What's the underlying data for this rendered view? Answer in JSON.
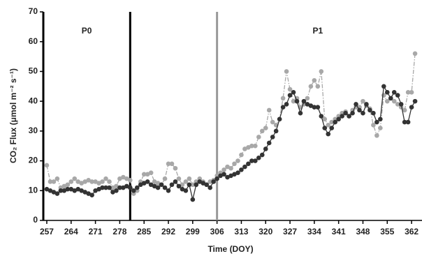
{
  "chart_data": {
    "type": "line",
    "xlabel": "Time (DOY)",
    "ylabel": "CO₂ Flux (μmol m⁻² s⁻¹)",
    "x": [
      257,
      258,
      259,
      260,
      261,
      262,
      263,
      264,
      265,
      266,
      267,
      268,
      269,
      270,
      271,
      272,
      273,
      274,
      275,
      276,
      277,
      278,
      279,
      280,
      281,
      282,
      283,
      284,
      285,
      286,
      287,
      288,
      289,
      290,
      291,
      292,
      293,
      294,
      295,
      296,
      297,
      298,
      299,
      300,
      301,
      302,
      303,
      304,
      305,
      306,
      307,
      308,
      309,
      310,
      311,
      312,
      313,
      314,
      315,
      316,
      317,
      318,
      319,
      320,
      321,
      322,
      323,
      324,
      325,
      326,
      327,
      328,
      329,
      330,
      331,
      332,
      333,
      334,
      335,
      336,
      337,
      338,
      339,
      340,
      341,
      342,
      343,
      344,
      345,
      346,
      347,
      348,
      349,
      350,
      351,
      352,
      353,
      354,
      355,
      356,
      357,
      358,
      359,
      360,
      361,
      362,
      363
    ],
    "series": [
      {
        "color": "#a8a8a8",
        "dash": true,
        "values": [
          18.5,
          13,
          13,
          14,
          11,
          11.5,
          12,
          13,
          14,
          13,
          12.5,
          13,
          13.5,
          13,
          13,
          12.5,
          13,
          14,
          13,
          11,
          11.5,
          14,
          14.5,
          14,
          13.5,
          9,
          10,
          13,
          15.5,
          15.5,
          16,
          13,
          12.5,
          12,
          14,
          19,
          19,
          17.5,
          14,
          12,
          13,
          14,
          12,
          13,
          14,
          13,
          12,
          13,
          13.5,
          15,
          16,
          17,
          18,
          17.5,
          19,
          20,
          22,
          24,
          24.5,
          25,
          25,
          28,
          30,
          31,
          37,
          33,
          32,
          34,
          41,
          50,
          44,
          40,
          41,
          38,
          39,
          41,
          45,
          47,
          45,
          50,
          34,
          32,
          33,
          34,
          35,
          36,
          36.5,
          35,
          37,
          38,
          38,
          40,
          38.5,
          37.5,
          32,
          28.5,
          31,
          42,
          40,
          41,
          40,
          39,
          38,
          37,
          43,
          43,
          56
        ]
      },
      {
        "color": "#333333",
        "dash": false,
        "values": [
          10.5,
          10,
          9.5,
          9,
          10,
          10,
          10.5,
          10.5,
          10,
          10.5,
          10,
          9.5,
          9,
          8.5,
          10,
          10.5,
          11,
          11,
          11,
          9.5,
          10,
          11,
          11,
          11.5,
          11,
          10,
          11,
          12,
          12.5,
          13,
          12,
          11.5,
          11,
          12,
          11,
          10,
          12,
          13,
          11.5,
          10.5,
          10,
          12,
          7,
          12,
          13,
          12.5,
          12,
          11,
          13,
          14,
          15,
          15.5,
          14.5,
          15,
          15.5,
          16,
          17,
          18,
          19,
          20,
          20,
          21,
          22,
          24,
          26,
          28,
          30,
          34,
          38,
          39,
          42,
          43,
          40,
          36,
          40,
          39,
          38.5,
          38,
          38,
          35,
          31,
          29,
          31,
          33,
          34,
          35,
          36,
          35,
          36,
          39,
          37,
          36,
          39,
          37,
          36,
          33,
          34,
          45,
          43,
          41,
          43,
          42,
          39,
          33,
          33,
          38,
          40
        ]
      }
    ],
    "vlines": [
      {
        "x": 256,
        "color": "#000000"
      },
      {
        "x": 281,
        "color": "#000000"
      },
      {
        "x": 306,
        "color": "#999999"
      }
    ],
    "annotations": [
      {
        "text": "P0",
        "x": 268.5
      },
      {
        "text": "P1",
        "x": 335
      }
    ],
    "xlim": [
      256,
      365
    ],
    "xticks": [
      257,
      264,
      271,
      278,
      285,
      292,
      299,
      306,
      313,
      320,
      327,
      334,
      341,
      348,
      355,
      362
    ],
    "ylim": [
      0,
      70
    ],
    "yticks": [
      0,
      10,
      20,
      30,
      40,
      50,
      60,
      70
    ]
  }
}
